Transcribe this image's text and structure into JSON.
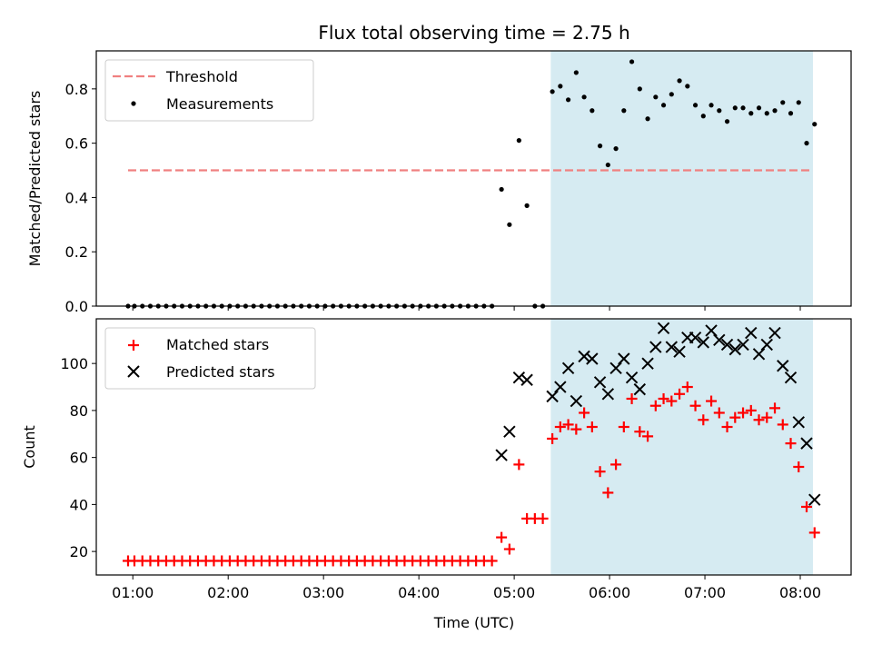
{
  "chart_data": [
    {
      "type": "scatter",
      "title": "Flux total observing time = 2.75 h",
      "xlabel": "",
      "ylabel": "Matched/Predicted stars",
      "xlim": [
        "00:37",
        "08:32"
      ],
      "ylim": [
        0,
        0.94
      ],
      "yticks": [
        0.0,
        0.2,
        0.4,
        0.6,
        0.8
      ],
      "ytick_labels": [
        "0.0",
        "0.2",
        "0.4",
        "0.6",
        "0.8"
      ],
      "shaded_region": {
        "x_start": "05:23",
        "x_end": "08:08",
        "color": "#add8e6"
      },
      "threshold": {
        "name": "Threshold",
        "y": 0.5,
        "x_start": "00:57",
        "x_end": "08:08",
        "color": "#f08080"
      },
      "legend": {
        "placement": "upper left",
        "entries": [
          "Threshold",
          "Measurements"
        ]
      },
      "series": [
        {
          "name": "Measurements",
          "color": "#000000",
          "marker": "dot",
          "x": [
            "00:57",
            "01:01",
            "01:06",
            "01:11",
            "01:16",
            "01:21",
            "01:26",
            "01:31",
            "01:36",
            "01:41",
            "01:46",
            "01:51",
            "01:56",
            "02:01",
            "02:06",
            "02:11",
            "02:16",
            "02:21",
            "02:26",
            "02:31",
            "02:36",
            "02:41",
            "02:46",
            "02:51",
            "02:56",
            "03:01",
            "03:06",
            "03:11",
            "03:16",
            "03:21",
            "03:26",
            "03:31",
            "03:36",
            "03:41",
            "03:46",
            "03:51",
            "03:56",
            "04:01",
            "04:06",
            "04:11",
            "04:16",
            "04:21",
            "04:26",
            "04:31",
            "04:36",
            "04:41",
            "04:46",
            "04:52",
            "04:57",
            "05:03",
            "05:08",
            "05:13",
            "05:18",
            "05:24",
            "05:29",
            "05:34",
            "05:39",
            "05:44",
            "05:49",
            "05:54",
            "05:59",
            "06:04",
            "06:09",
            "06:14",
            "06:19",
            "06:24",
            "06:29",
            "06:34",
            "06:39",
            "06:44",
            "06:49",
            "06:54",
            "06:59",
            "07:04",
            "07:09",
            "07:14",
            "07:19",
            "07:24",
            "07:29",
            "07:34",
            "07:39",
            "07:44",
            "07:49",
            "07:54",
            "07:59",
            "08:04",
            "08:09"
          ],
          "y": [
            0,
            0,
            0,
            0,
            0,
            0,
            0,
            0,
            0,
            0,
            0,
            0,
            0,
            0,
            0,
            0,
            0,
            0,
            0,
            0,
            0,
            0,
            0,
            0,
            0,
            0,
            0,
            0,
            0,
            0,
            0,
            0,
            0,
            0,
            0,
            0,
            0,
            0,
            0,
            0,
            0,
            0,
            0,
            0,
            0,
            0,
            0,
            0.43,
            0.3,
            0.61,
            0.37,
            0,
            0,
            0.79,
            0.81,
            0.76,
            0.86,
            0.77,
            0.72,
            0.59,
            0.52,
            0.58,
            0.72,
            0.9,
            0.8,
            0.69,
            0.77,
            0.74,
            0.78,
            0.83,
            0.81,
            0.74,
            0.7,
            0.74,
            0.72,
            0.68,
            0.73,
            0.73,
            0.71,
            0.73,
            0.71,
            0.72,
            0.75,
            0.71,
            0.75,
            0.6,
            0.67
          ]
        }
      ]
    },
    {
      "type": "scatter",
      "title": "",
      "xlabel": "Time (UTC)",
      "ylabel": "Count",
      "xlim": [
        "00:37",
        "08:32"
      ],
      "ylim": [
        10,
        119
      ],
      "yticks": [
        20,
        40,
        60,
        80,
        100
      ],
      "ytick_labels": [
        "20",
        "40",
        "60",
        "80",
        "100"
      ],
      "xticks": [
        "01:00",
        "02:00",
        "03:00",
        "04:00",
        "05:00",
        "06:00",
        "07:00",
        "08:00"
      ],
      "shaded_region": {
        "x_start": "05:23",
        "x_end": "08:08",
        "color": "#add8e6"
      },
      "legend": {
        "placement": "upper left",
        "entries": [
          "Matched stars",
          "Predicted stars"
        ]
      },
      "series": [
        {
          "name": "Matched stars",
          "color": "#ff0000",
          "marker": "plus",
          "x": [
            "00:57",
            "01:01",
            "01:06",
            "01:11",
            "01:16",
            "01:21",
            "01:26",
            "01:31",
            "01:36",
            "01:41",
            "01:46",
            "01:51",
            "01:56",
            "02:01",
            "02:06",
            "02:11",
            "02:16",
            "02:21",
            "02:26",
            "02:31",
            "02:36",
            "02:41",
            "02:46",
            "02:51",
            "02:56",
            "03:01",
            "03:06",
            "03:11",
            "03:16",
            "03:21",
            "03:26",
            "03:31",
            "03:36",
            "03:41",
            "03:46",
            "03:51",
            "03:56",
            "04:01",
            "04:06",
            "04:11",
            "04:16",
            "04:21",
            "04:26",
            "04:31",
            "04:36",
            "04:41",
            "04:46",
            "04:52",
            "04:57",
            "05:03",
            "05:08",
            "05:13",
            "05:18",
            "05:24",
            "05:29",
            "05:34",
            "05:39",
            "05:44",
            "05:49",
            "05:54",
            "05:59",
            "06:04",
            "06:09",
            "06:14",
            "06:19",
            "06:24",
            "06:29",
            "06:34",
            "06:39",
            "06:44",
            "06:49",
            "06:54",
            "06:59",
            "07:04",
            "07:09",
            "07:14",
            "07:19",
            "07:24",
            "07:29",
            "07:34",
            "07:39",
            "07:44",
            "07:49",
            "07:54",
            "07:59",
            "08:04",
            "08:09"
          ],
          "y": [
            16,
            16,
            16,
            16,
            16,
            16,
            16,
            16,
            16,
            16,
            16,
            16,
            16,
            16,
            16,
            16,
            16,
            16,
            16,
            16,
            16,
            16,
            16,
            16,
            16,
            16,
            16,
            16,
            16,
            16,
            16,
            16,
            16,
            16,
            16,
            16,
            16,
            16,
            16,
            16,
            16,
            16,
            16,
            16,
            16,
            16,
            16,
            26,
            21,
            57,
            34,
            34,
            34,
            68,
            73,
            74,
            72,
            79,
            73,
            54,
            45,
            57,
            73,
            85,
            71,
            69,
            82,
            85,
            84,
            87,
            90,
            82,
            76,
            84,
            79,
            73,
            77,
            79,
            80,
            76,
            77,
            81,
            74,
            66,
            56,
            39,
            28
          ]
        },
        {
          "name": "Predicted stars",
          "color": "#000000",
          "marker": "x",
          "x": [
            "04:52",
            "04:57",
            "05:03",
            "05:08",
            "05:24",
            "05:29",
            "05:34",
            "05:39",
            "05:44",
            "05:49",
            "05:54",
            "05:59",
            "06:04",
            "06:09",
            "06:14",
            "06:19",
            "06:24",
            "06:29",
            "06:34",
            "06:39",
            "06:44",
            "06:49",
            "06:54",
            "06:59",
            "07:04",
            "07:09",
            "07:14",
            "07:19",
            "07:24",
            "07:29",
            "07:34",
            "07:39",
            "07:44",
            "07:49",
            "07:54",
            "07:59",
            "08:04",
            "08:09"
          ],
          "y": [
            61,
            71,
            94,
            93,
            86,
            90,
            98,
            84,
            103,
            102,
            92,
            87,
            98,
            102,
            94,
            89,
            100,
            107,
            115,
            107,
            105,
            111,
            111,
            109,
            114,
            110,
            108,
            106,
            108,
            113,
            104,
            108,
            113,
            99,
            94,
            75,
            66,
            42
          ]
        }
      ]
    }
  ]
}
